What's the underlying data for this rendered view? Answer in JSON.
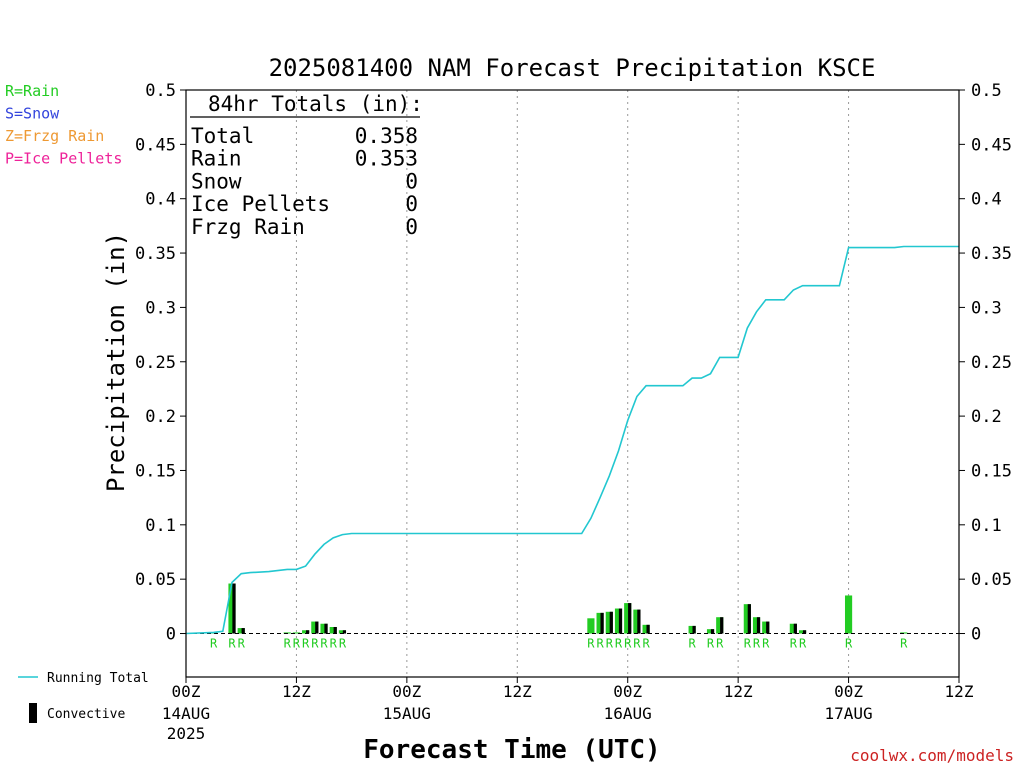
{
  "chart_data": {
    "type": "bar",
    "title": "2025081400 NAM Forecast Precipitation KSCE",
    "ylabel": "Precipitation (in)",
    "xlabel": "Forecast Time (UTC)",
    "ylim": [
      -0.04,
      0.5
    ],
    "xlim_hours": [
      0,
      84
    ],
    "y_ticks": [
      "0.5",
      "0.45",
      "0.4",
      "0.35",
      "0.3",
      "0.25",
      "0.2",
      "0.15",
      "0.1",
      "0.05",
      "0"
    ],
    "x_ticks": [
      {
        "hour": 0,
        "label": "00Z",
        "date": "14AUG",
        "year": "2025"
      },
      {
        "hour": 12,
        "label": "12Z",
        "date": "",
        "year": ""
      },
      {
        "hour": 24,
        "label": "00Z",
        "date": "15AUG",
        "year": ""
      },
      {
        "hour": 36,
        "label": "12Z",
        "date": "",
        "year": ""
      },
      {
        "hour": 48,
        "label": "00Z",
        "date": "16AUG",
        "year": ""
      },
      {
        "hour": 60,
        "label": "12Z",
        "date": "",
        "year": ""
      },
      {
        "hour": 72,
        "label": "00Z",
        "date": "17AUG",
        "year": ""
      },
      {
        "hour": 84,
        "label": "12Z",
        "date": "",
        "year": ""
      }
    ],
    "grid": true,
    "legend_types": [
      {
        "text": "R=Rain",
        "color": "#22cc22"
      },
      {
        "text": "S=Snow",
        "color": "#3344dd"
      },
      {
        "text": "Z=Frzg Rain",
        "color": "#ee9933"
      },
      {
        "text": "P=Ice Pellets",
        "color": "#ee2299"
      }
    ],
    "legend_series": [
      {
        "text": "Running Total",
        "color": "#22c7d0"
      },
      {
        "text": "Convective",
        "color": "#000000"
      }
    ],
    "totals": {
      "heading": "84hr Totals (in):",
      "rows": [
        {
          "label": "Total",
          "value": "0.358"
        },
        {
          "label": "Rain",
          "value": "0.353"
        },
        {
          "label": "Snow",
          "value": "0"
        },
        {
          "label": "Ice Pellets",
          "value": "0"
        },
        {
          "label": "Frzg Rain",
          "value": "0"
        }
      ]
    },
    "bars": [
      {
        "hour": 3,
        "total": 0.001,
        "convective": 0.0,
        "type": "R"
      },
      {
        "hour": 5,
        "total": 0.046,
        "convective": 0.046,
        "type": "R"
      },
      {
        "hour": 6,
        "total": 0.005,
        "convective": 0.005,
        "type": "R"
      },
      {
        "hour": 11,
        "total": 0.001,
        "convective": 0.0,
        "type": "R"
      },
      {
        "hour": 12,
        "total": 0.001,
        "convective": 0.0,
        "type": "R"
      },
      {
        "hour": 13,
        "total": 0.003,
        "convective": 0.003,
        "type": "R"
      },
      {
        "hour": 14,
        "total": 0.011,
        "convective": 0.011,
        "type": "R"
      },
      {
        "hour": 15,
        "total": 0.009,
        "convective": 0.009,
        "type": "R"
      },
      {
        "hour": 16,
        "total": 0.006,
        "convective": 0.006,
        "type": "R"
      },
      {
        "hour": 17,
        "total": 0.003,
        "convective": 0.003,
        "type": "R"
      },
      {
        "hour": 44,
        "total": 0.014,
        "convective": 0.0,
        "type": "R"
      },
      {
        "hour": 45,
        "total": 0.019,
        "convective": 0.019,
        "type": "R"
      },
      {
        "hour": 46,
        "total": 0.02,
        "convective": 0.02,
        "type": "R"
      },
      {
        "hour": 47,
        "total": 0.023,
        "convective": 0.023,
        "type": "R"
      },
      {
        "hour": 48,
        "total": 0.028,
        "convective": 0.028,
        "type": "R"
      },
      {
        "hour": 49,
        "total": 0.022,
        "convective": 0.022,
        "type": "R"
      },
      {
        "hour": 50,
        "total": 0.008,
        "convective": 0.008,
        "type": "R"
      },
      {
        "hour": 55,
        "total": 0.007,
        "convective": 0.007,
        "type": "R"
      },
      {
        "hour": 57,
        "total": 0.004,
        "convective": 0.004,
        "type": "R"
      },
      {
        "hour": 58,
        "total": 0.015,
        "convective": 0.015,
        "type": "R"
      },
      {
        "hour": 61,
        "total": 0.027,
        "convective": 0.027,
        "type": "R"
      },
      {
        "hour": 62,
        "total": 0.015,
        "convective": 0.015,
        "type": "R"
      },
      {
        "hour": 63,
        "total": 0.011,
        "convective": 0.011,
        "type": "R"
      },
      {
        "hour": 66,
        "total": 0.009,
        "convective": 0.009,
        "type": "R"
      },
      {
        "hour": 67,
        "total": 0.003,
        "convective": 0.003,
        "type": "R"
      },
      {
        "hour": 72,
        "total": 0.035,
        "convective": 0.0,
        "type": "R"
      },
      {
        "hour": 78,
        "total": 0.001,
        "convective": 0.0,
        "type": "R"
      }
    ],
    "type_labels": [
      {
        "hour": 3,
        "text": "R"
      },
      {
        "hour": 5,
        "text": "R"
      },
      {
        "hour": 6,
        "text": "R"
      },
      {
        "hour": 11,
        "text": "R"
      },
      {
        "hour": 12,
        "text": "R"
      },
      {
        "hour": 13,
        "text": "R"
      },
      {
        "hour": 14,
        "text": "R"
      },
      {
        "hour": 15,
        "text": "R"
      },
      {
        "hour": 16,
        "text": "R"
      },
      {
        "hour": 17,
        "text": "R"
      },
      {
        "hour": 44,
        "text": "R"
      },
      {
        "hour": 45,
        "text": "R"
      },
      {
        "hour": 46,
        "text": "R"
      },
      {
        "hour": 47,
        "text": "R"
      },
      {
        "hour": 48,
        "text": "R"
      },
      {
        "hour": 49,
        "text": "R"
      },
      {
        "hour": 50,
        "text": "R"
      },
      {
        "hour": 55,
        "text": "R"
      },
      {
        "hour": 57,
        "text": "R"
      },
      {
        "hour": 58,
        "text": "R"
      },
      {
        "hour": 61,
        "text": "R"
      },
      {
        "hour": 62,
        "text": "R"
      },
      {
        "hour": 63,
        "text": "R"
      },
      {
        "hour": 66,
        "text": "R"
      },
      {
        "hour": 67,
        "text": "R"
      },
      {
        "hour": 72,
        "text": "R"
      },
      {
        "hour": 78,
        "text": "R"
      }
    ],
    "running_total": [
      [
        0,
        0.0
      ],
      [
        3,
        0.001
      ],
      [
        4,
        0.002
      ],
      [
        5,
        0.047
      ],
      [
        6,
        0.055
      ],
      [
        7,
        0.056
      ],
      [
        9,
        0.057
      ],
      [
        11,
        0.059
      ],
      [
        12,
        0.059
      ],
      [
        13,
        0.062
      ],
      [
        14,
        0.073
      ],
      [
        15,
        0.082
      ],
      [
        16,
        0.088
      ],
      [
        17,
        0.091
      ],
      [
        18,
        0.092
      ],
      [
        20,
        0.092
      ],
      [
        30,
        0.092
      ],
      [
        40,
        0.092
      ],
      [
        43,
        0.092
      ],
      [
        44,
        0.106
      ],
      [
        45,
        0.125
      ],
      [
        46,
        0.145
      ],
      [
        47,
        0.168
      ],
      [
        48,
        0.196
      ],
      [
        49,
        0.218
      ],
      [
        50,
        0.228
      ],
      [
        54,
        0.228
      ],
      [
        55,
        0.235
      ],
      [
        56,
        0.235
      ],
      [
        57,
        0.239
      ],
      [
        58,
        0.254
      ],
      [
        60,
        0.254
      ],
      [
        61,
        0.281
      ],
      [
        62,
        0.296
      ],
      [
        63,
        0.307
      ],
      [
        65,
        0.307
      ],
      [
        66,
        0.316
      ],
      [
        67,
        0.32
      ],
      [
        71,
        0.32
      ],
      [
        72,
        0.355
      ],
      [
        77,
        0.355
      ],
      [
        78,
        0.356
      ],
      [
        84,
        0.356
      ]
    ]
  },
  "colors": {
    "rain": "#22cc22",
    "convective": "#000000",
    "running_total": "#22c7d0",
    "grid": "#999999",
    "credit": "#cc2222"
  },
  "credit": "coolwx.com/models"
}
